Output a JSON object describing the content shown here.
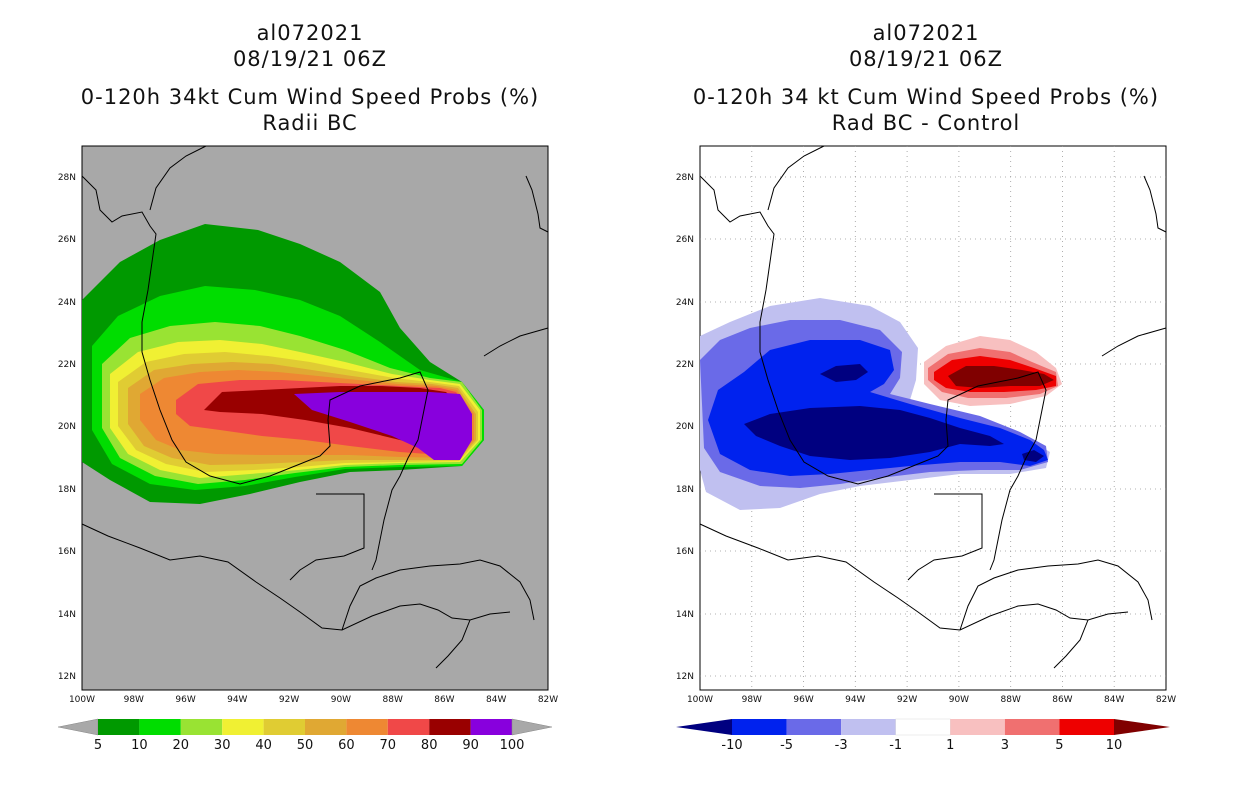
{
  "left": {
    "title_lines": [
      "al072021",
      "08/19/21 06Z",
      "0-120h 34kt Cum Wind Speed Probs (%)",
      "Radii BC"
    ],
    "background": "#a8a8a8",
    "colorbar": {
      "colors": [
        "#009900",
        "#00dd00",
        "#99e333",
        "#f0f033",
        "#e0cc33",
        "#e0a833",
        "#ee8833",
        "#f04848",
        "#990000",
        "#8800dd"
      ],
      "labels": [
        "5",
        "10",
        "20",
        "30",
        "40",
        "50",
        "60",
        "70",
        "80",
        "90",
        "100"
      ]
    }
  },
  "right": {
    "title_lines": [
      "al072021",
      "08/19/21 06Z",
      "0-120h 34 kt Cum Wind Speed Probs (%)",
      "Rad BC - Control"
    ],
    "background": "#ffffff",
    "colorbar": {
      "colors": [
        "#000080",
        "#0022ee",
        "#6a6ae8",
        "#c0c0f0",
        "#ffffff",
        "#f8c0c0",
        "#f07070",
        "#ee0000",
        "#800000"
      ],
      "labels": [
        "-10",
        "-5",
        "-3",
        "-1",
        "1",
        "3",
        "5",
        "10"
      ]
    }
  },
  "map": {
    "lon_labels": [
      "100W",
      "98W",
      "96W",
      "94W",
      "92W",
      "90W",
      "88W",
      "86W",
      "84W",
      "82W"
    ],
    "lat_labels": [
      "12N",
      "14N",
      "16N",
      "18N",
      "20N",
      "22N",
      "24N",
      "26N",
      "28N"
    ]
  }
}
